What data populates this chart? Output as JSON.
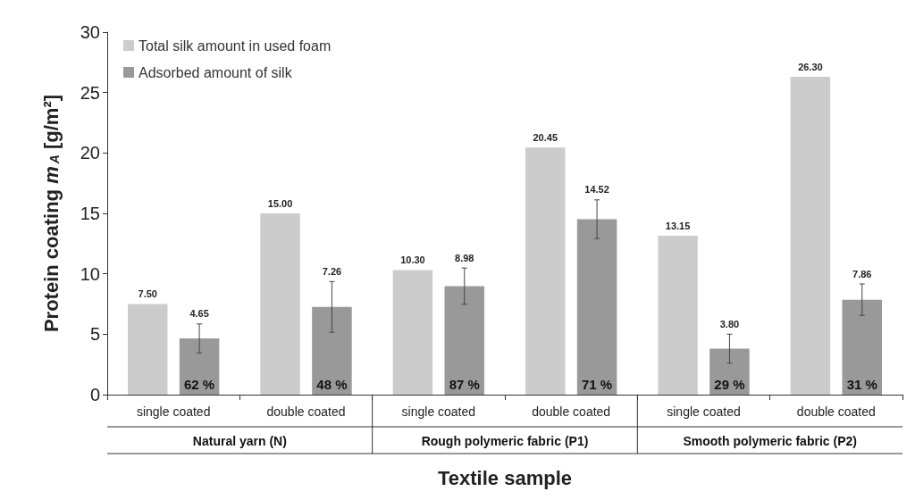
{
  "chart_data": {
    "type": "bar",
    "xlabel": "Textile sample",
    "ylabel": "Protein coating m$_{A}$ [g/m²]",
    "categories": [
      "single coated",
      "double coated",
      "single coated",
      "double coated",
      "single coated",
      "double coated"
    ],
    "series": [
      {
        "name": "Total silk amount in used foam",
        "color": "#cccccc",
        "values": [
          7.5,
          15.0,
          10.3,
          20.45,
          13.15,
          26.3
        ],
        "value_labels": [
          "7.50",
          "15.00",
          "10.30",
          "20.45",
          "13.15",
          "26.30"
        ]
      },
      {
        "name": "Adsorbed amount of silk",
        "color": "#999999",
        "values": [
          4.65,
          7.26,
          8.98,
          14.52,
          3.8,
          7.86
        ],
        "value_labels": [
          "4.65",
          "7.26",
          "8.98",
          "14.52",
          "3.80",
          "7.86"
        ],
        "errors": [
          1.2,
          2.1,
          1.5,
          1.6,
          1.2,
          1.3
        ]
      }
    ],
    "annotations": [
      "62 %",
      "48 %",
      "87 %",
      "71 %",
      "29 %",
      "31 %",
      "Natural yarn (N)",
      "Rough polymeric fabric (P1)",
      "Smooth polymeric fabric (P2)"
    ],
    "ylim": [
      0,
      30
    ],
    "yticks": [
      0,
      5,
      10,
      15,
      20,
      25,
      30
    ],
    "grid": false,
    "legend": "top left"
  }
}
